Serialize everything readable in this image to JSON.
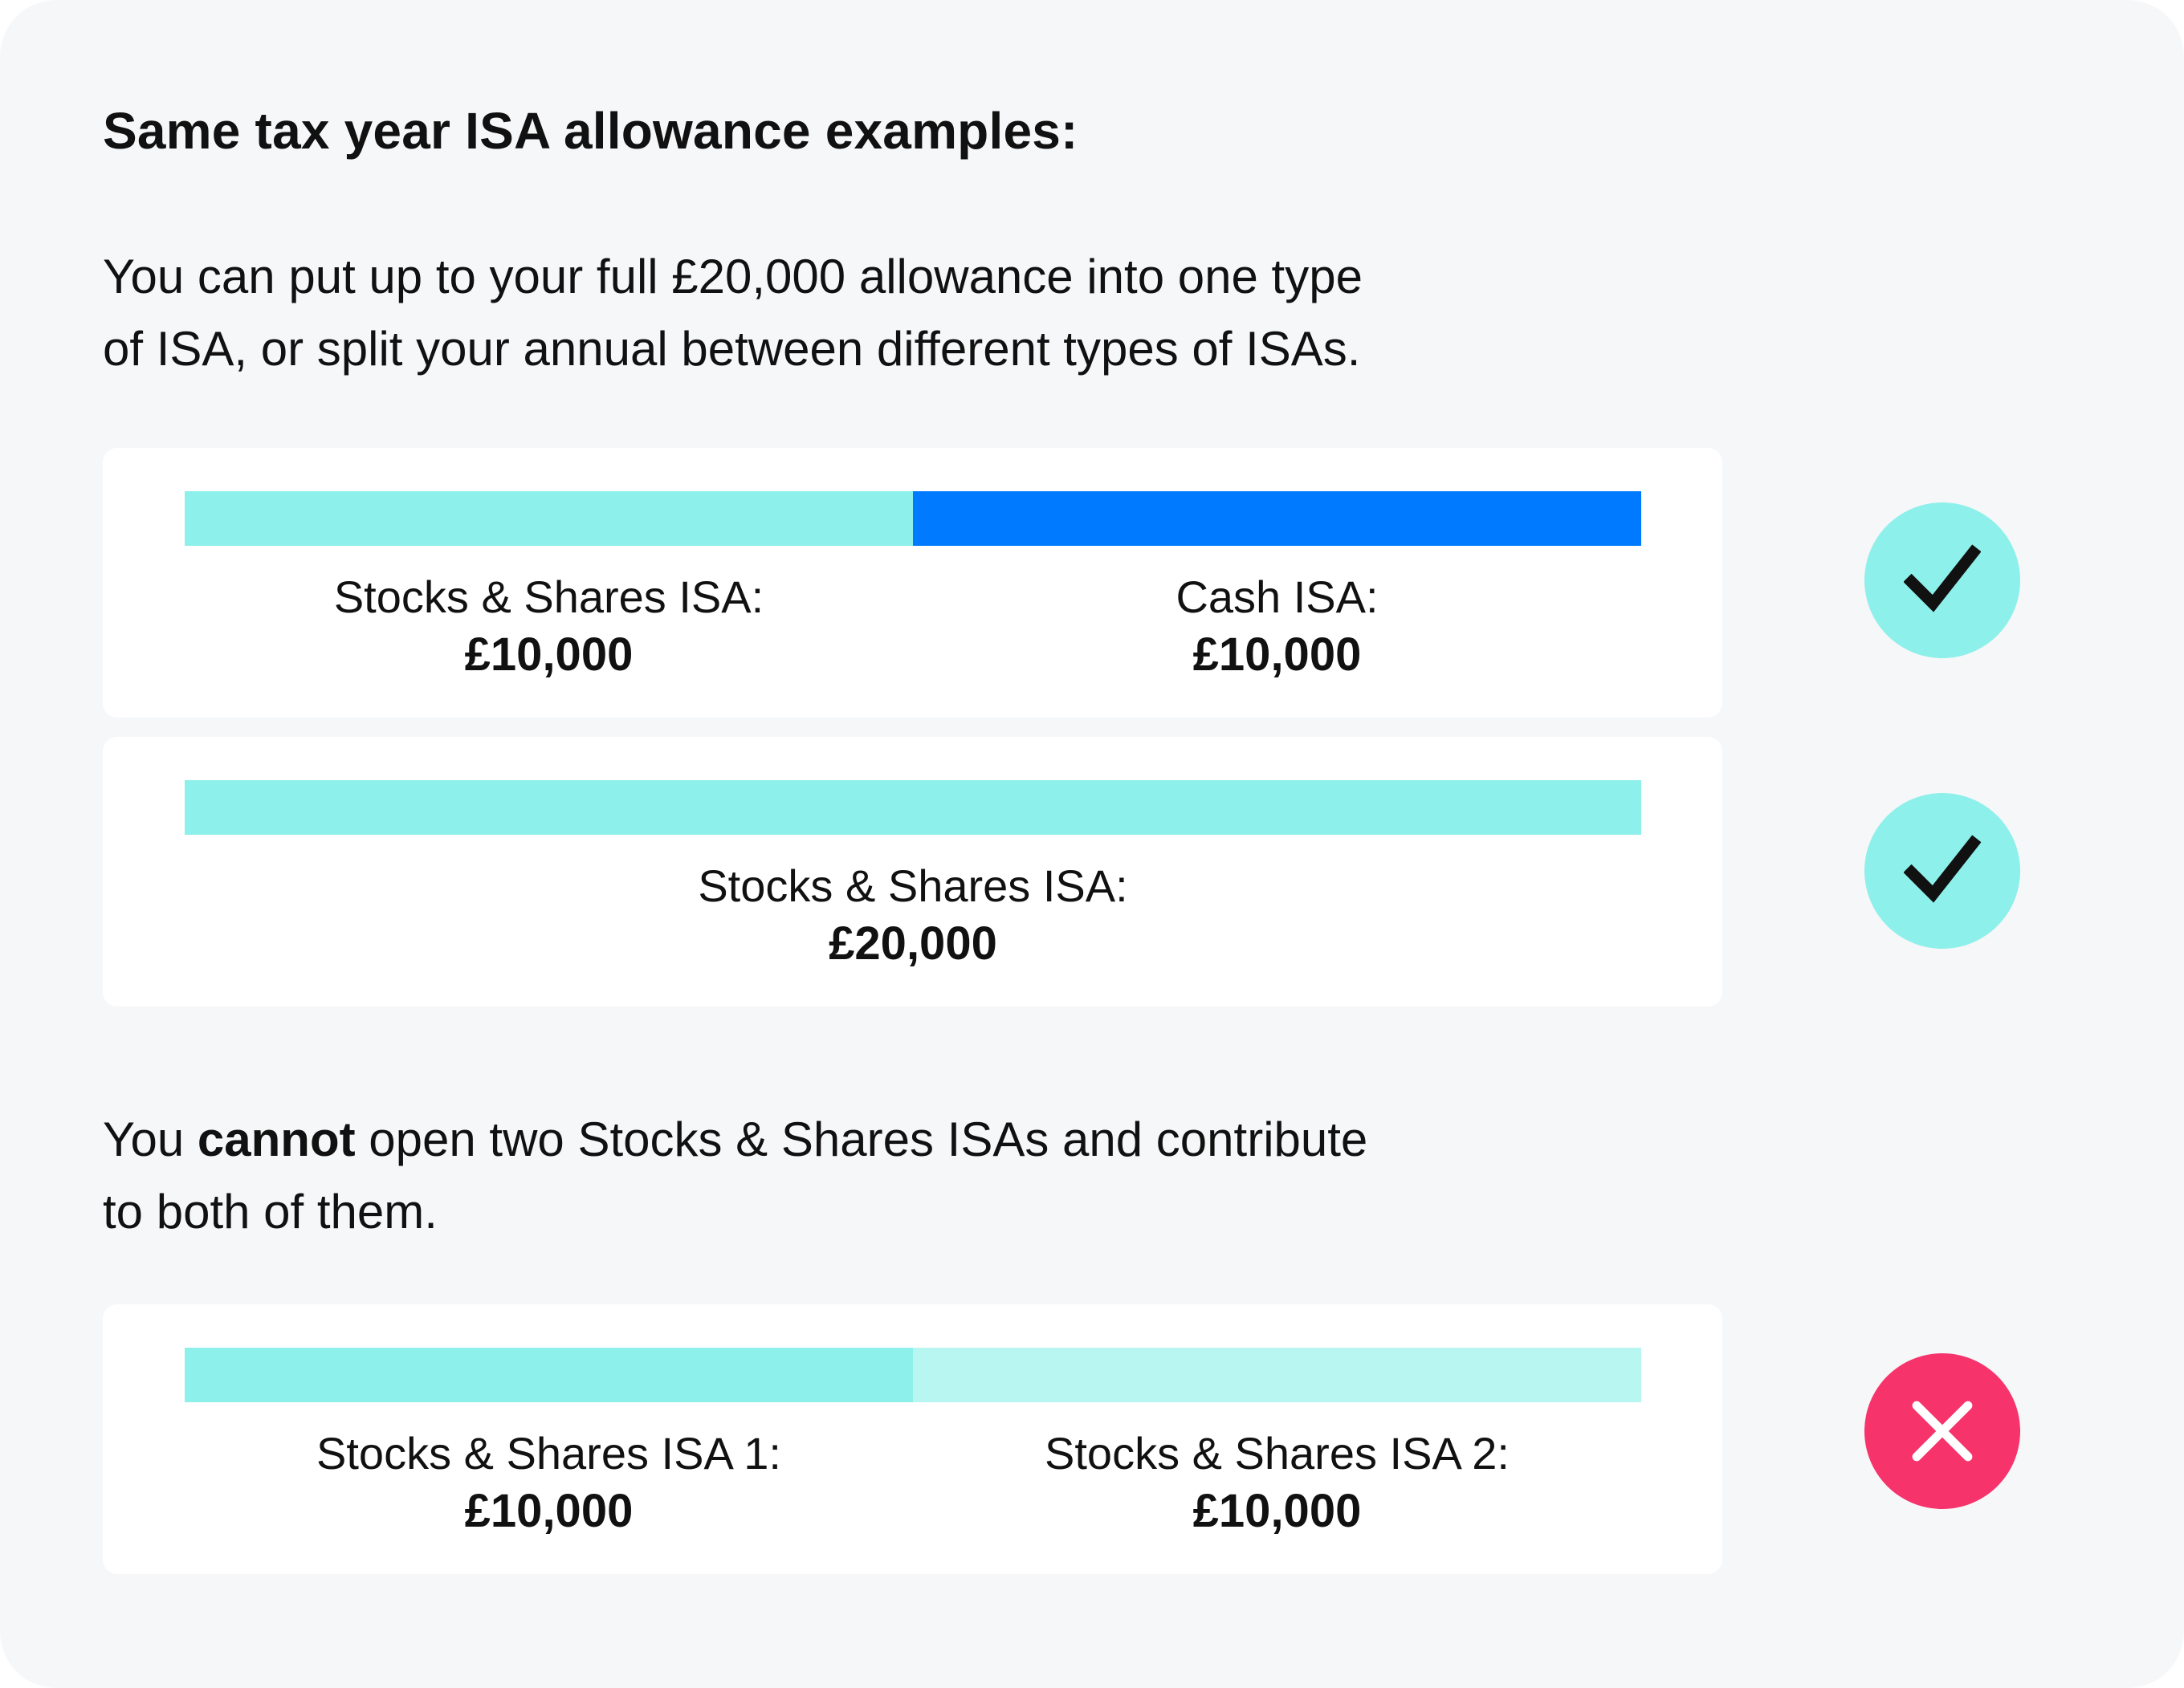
{
  "heading": "Same tax year ISA allowance examples:",
  "intro": {
    "line1": "You can put up to your full £20,000 allowance into one type",
    "line2": "of ISA, or split your annual between different types of ISAs."
  },
  "colors": {
    "stocks_shares": "#8ef0ea",
    "cash": "#007bff",
    "stocks_shares_light": "#b8f6f2",
    "valid_badge": "#8ef0ea",
    "invalid_badge": "#f7336b"
  },
  "examples": [
    {
      "segments": [
        {
          "label": "Stocks & Shares ISA:",
          "amount": "£10,000",
          "value": 10000,
          "color": "#8ef0ea"
        },
        {
          "label": "Cash ISA:",
          "amount": "£10,000",
          "value": 10000,
          "color": "#007bff"
        }
      ],
      "status": "valid",
      "icon": "check-icon"
    },
    {
      "segments": [
        {
          "label": "Stocks & Shares ISA:",
          "amount": "£20,000",
          "value": 20000,
          "color": "#8ef0ea"
        }
      ],
      "status": "valid",
      "icon": "check-icon"
    },
    {
      "segments": [
        {
          "label": "Stocks & Shares ISA 1:",
          "amount": "£10,000",
          "value": 10000,
          "color": "#8ef0ea"
        },
        {
          "label": "Stocks & Shares ISA 2:",
          "amount": "£10,000",
          "value": 10000,
          "color": "#b8f6f2"
        }
      ],
      "status": "invalid",
      "icon": "cross-icon"
    }
  ],
  "cannot": {
    "pre": "You ",
    "bold": "cannot",
    "post": " open two Stocks & Shares ISAs and contribute",
    "line2": "to both of them."
  }
}
